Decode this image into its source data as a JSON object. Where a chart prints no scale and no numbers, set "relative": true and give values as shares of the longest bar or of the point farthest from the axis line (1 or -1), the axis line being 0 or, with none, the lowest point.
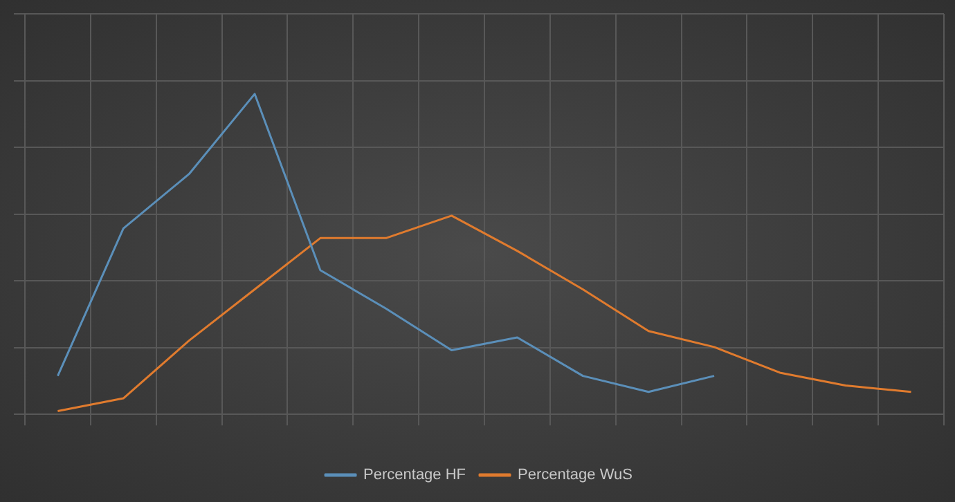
{
  "chart_data": {
    "type": "line",
    "relative": true,
    "categories": [
      null,
      null,
      null,
      null,
      null,
      null,
      null,
      null,
      null,
      null,
      null,
      null,
      null,
      null
    ],
    "series": [
      {
        "name": "Percentage HF",
        "color": "#5b8fb9",
        "values": [
          0.12,
          0.58,
          0.75,
          1,
          0.45,
          0.33,
          0.2,
          0.24,
          0.12,
          0.07,
          0.12,
          null,
          null,
          null
        ]
      },
      {
        "name": "Percentage WuS",
        "color": "#e07b2e",
        "values": [
          0.01,
          0.05,
          0.23,
          0.39,
          0.55,
          0.55,
          0.62,
          0.51,
          0.39,
          0.26,
          0.21,
          0.13,
          0.09,
          0.07
        ]
      }
    ],
    "grid": true,
    "legend": "bottom",
    "marker": "none",
    "line_style": "solid"
  }
}
